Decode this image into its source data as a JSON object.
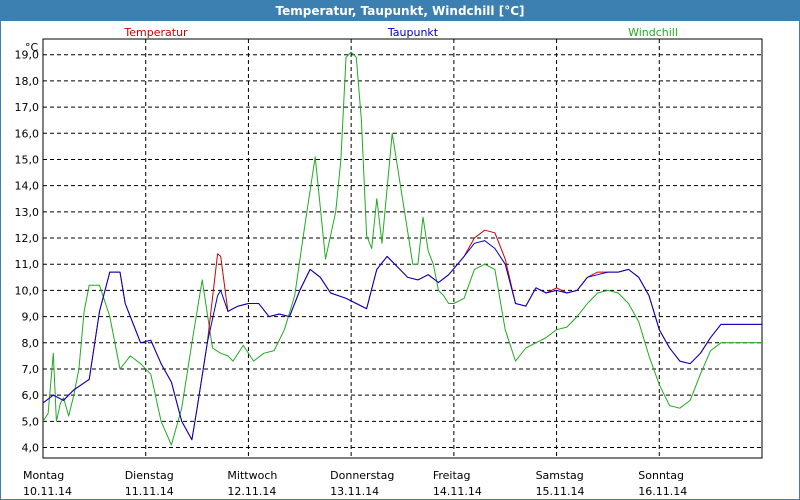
{
  "window": {
    "title": "Temperatur, Taupunkt, Windchill [°C]"
  },
  "colors": {
    "temperatur": "#cc0000",
    "taupunkt": "#0000cc",
    "windchill": "#22aa22",
    "titlebar": "#3c7fb1"
  },
  "chart_data": {
    "type": "line",
    "title": "Temperatur, Taupunkt, Windchill [°C]",
    "ylabel": "°C",
    "xlabel": "",
    "ylim": [
      3.6,
      19.6
    ],
    "xlim": [
      0,
      7
    ],
    "grid": true,
    "legend": "top",
    "yticks": [
      "4,0",
      "5,0",
      "6,0",
      "7,0",
      "8,0",
      "9,0",
      "10,0",
      "11,0",
      "12,0",
      "13,0",
      "14,0",
      "15,0",
      "16,0",
      "17,0",
      "18,0",
      "19,0"
    ],
    "xticks": [
      {
        "day": "Montag",
        "date": "10.11.14"
      },
      {
        "day": "Dienstag",
        "date": "11.11.14"
      },
      {
        "day": "Mittwoch",
        "date": "12.11.14"
      },
      {
        "day": "Donnerstag",
        "date": "13.11.14"
      },
      {
        "day": "Freitag",
        "date": "14.11.14"
      },
      {
        "day": "Samstag",
        "date": "15.11.14"
      },
      {
        "day": "Sonntag",
        "date": "16.11.14"
      }
    ],
    "series": [
      {
        "name": "Temperatur",
        "color": "#cc0000",
        "x": [
          0,
          0.1,
          0.2,
          0.3,
          0.45,
          0.55,
          0.65,
          0.75,
          0.8,
          0.95,
          1.05,
          1.15,
          1.25,
          1.35,
          1.45,
          1.5,
          1.6,
          1.7,
          1.73,
          1.8,
          1.85,
          1.9,
          2.0,
          2.1,
          2.2,
          2.3,
          2.4,
          2.5,
          2.6,
          2.7,
          2.8,
          2.95,
          3.05,
          3.15,
          3.25,
          3.35,
          3.45,
          3.55,
          3.65,
          3.75,
          3.85,
          3.95,
          4.1,
          4.2,
          4.3,
          4.4,
          4.5,
          4.6,
          4.7,
          4.8,
          4.9,
          5.0,
          5.1,
          5.2,
          5.3,
          5.4,
          5.5,
          5.6,
          5.7,
          5.8,
          5.9,
          6.0,
          6.1,
          6.2,
          6.3,
          6.4,
          6.5,
          6.6,
          6.7,
          6.8,
          6.9,
          6.95,
          7.0
        ],
        "y": [
          5.7,
          6.0,
          5.8,
          6.2,
          6.6,
          9.2,
          10.7,
          10.7,
          9.5,
          8.0,
          8.1,
          7.2,
          6.5,
          5.0,
          4.3,
          5.5,
          8.0,
          11.4,
          11.3,
          9.2,
          9.3,
          9.4,
          9.5,
          9.5,
          9.0,
          9.1,
          9.0,
          10.0,
          10.8,
          10.5,
          9.9,
          9.7,
          9.5,
          9.3,
          10.8,
          11.3,
          10.9,
          10.5,
          10.4,
          10.6,
          10.3,
          10.6,
          11.3,
          12.0,
          12.3,
          12.2,
          11.2,
          9.5,
          9.4,
          10.1,
          9.9,
          10.1,
          9.9,
          10.0,
          10.5,
          10.7,
          10.7,
          10.7,
          10.8,
          10.5,
          9.8,
          8.5,
          7.8,
          7.3,
          7.2,
          7.6,
          8.2,
          8.7,
          8.7,
          8.7,
          8.7,
          8.7,
          8.7
        ]
      },
      {
        "name": "Taupunkt",
        "color": "#0000cc",
        "x": [
          0,
          0.1,
          0.2,
          0.3,
          0.45,
          0.55,
          0.65,
          0.75,
          0.8,
          0.95,
          1.05,
          1.15,
          1.25,
          1.35,
          1.45,
          1.5,
          1.6,
          1.7,
          1.73,
          1.8,
          1.85,
          1.9,
          2.0,
          2.1,
          2.2,
          2.3,
          2.4,
          2.5,
          2.6,
          2.7,
          2.8,
          2.95,
          3.05,
          3.15,
          3.25,
          3.35,
          3.45,
          3.55,
          3.65,
          3.75,
          3.85,
          3.95,
          4.1,
          4.2,
          4.3,
          4.4,
          4.5,
          4.6,
          4.7,
          4.8,
          4.9,
          5.0,
          5.1,
          5.2,
          5.3,
          5.4,
          5.5,
          5.6,
          5.7,
          5.8,
          5.9,
          6.0,
          6.1,
          6.2,
          6.3,
          6.4,
          6.5,
          6.6,
          6.7,
          6.8,
          6.9,
          6.95,
          7.0
        ],
        "y": [
          5.7,
          6.0,
          5.8,
          6.2,
          6.6,
          9.2,
          10.7,
          10.7,
          9.5,
          8.0,
          8.1,
          7.2,
          6.5,
          5.0,
          4.3,
          5.5,
          8.0,
          9.8,
          10.0,
          9.2,
          9.3,
          9.4,
          9.5,
          9.5,
          9.0,
          9.1,
          9.0,
          10.0,
          10.8,
          10.5,
          9.9,
          9.7,
          9.5,
          9.3,
          10.8,
          11.3,
          10.9,
          10.5,
          10.4,
          10.6,
          10.3,
          10.6,
          11.3,
          11.8,
          11.9,
          11.6,
          11.0,
          9.5,
          9.4,
          10.1,
          9.9,
          10.0,
          9.9,
          10.0,
          10.5,
          10.6,
          10.7,
          10.7,
          10.8,
          10.5,
          9.8,
          8.5,
          7.8,
          7.3,
          7.2,
          7.6,
          8.2,
          8.7,
          8.7,
          8.7,
          8.7,
          8.7,
          8.7
        ]
      },
      {
        "name": "Windchill",
        "color": "#22aa22",
        "x": [
          0,
          0.05,
          0.1,
          0.13,
          0.17,
          0.2,
          0.25,
          0.3,
          0.35,
          0.4,
          0.45,
          0.55,
          0.65,
          0.75,
          0.85,
          0.95,
          1.05,
          1.15,
          1.25,
          1.35,
          1.45,
          1.55,
          1.65,
          1.73,
          1.8,
          1.85,
          1.95,
          2.05,
          2.15,
          2.25,
          2.35,
          2.45,
          2.55,
          2.65,
          2.75,
          2.85,
          2.9,
          2.95,
          3.0,
          3.05,
          3.1,
          3.15,
          3.2,
          3.25,
          3.3,
          3.4,
          3.5,
          3.6,
          3.65,
          3.7,
          3.75,
          3.8,
          3.85,
          3.9,
          3.95,
          4.0,
          4.1,
          4.2,
          4.3,
          4.4,
          4.5,
          4.6,
          4.7,
          4.8,
          4.9,
          5.0,
          5.1,
          5.2,
          5.3,
          5.4,
          5.5,
          5.6,
          5.7,
          5.8,
          5.9,
          6.0,
          6.1,
          6.2,
          6.3,
          6.4,
          6.5,
          6.6,
          6.7,
          6.8,
          6.9,
          6.95,
          7.0
        ],
        "y": [
          5.0,
          5.3,
          7.6,
          5.0,
          5.7,
          5.9,
          5.2,
          6.0,
          7.0,
          9.2,
          10.2,
          10.2,
          9.0,
          7.0,
          7.5,
          7.2,
          6.8,
          5.0,
          4.1,
          5.5,
          8.0,
          10.4,
          7.8,
          7.6,
          7.5,
          7.3,
          7.9,
          7.3,
          7.6,
          7.7,
          8.5,
          9.8,
          12.5,
          15.1,
          11.2,
          13.0,
          15.0,
          18.9,
          19.1,
          18.9,
          16.5,
          12.1,
          11.6,
          13.5,
          11.8,
          16.0,
          13.5,
          11.0,
          11.0,
          12.8,
          11.5,
          11.0,
          10.0,
          9.8,
          9.5,
          9.5,
          9.7,
          10.8,
          11.0,
          10.8,
          8.5,
          7.3,
          7.8,
          8.0,
          8.2,
          8.5,
          8.6,
          9.0,
          9.5,
          9.9,
          10.0,
          9.9,
          9.5,
          8.8,
          7.5,
          6.4,
          5.6,
          5.5,
          5.8,
          6.8,
          7.7,
          8.0,
          8.0,
          8.0,
          8.0,
          8.0,
          8.0
        ]
      }
    ]
  }
}
